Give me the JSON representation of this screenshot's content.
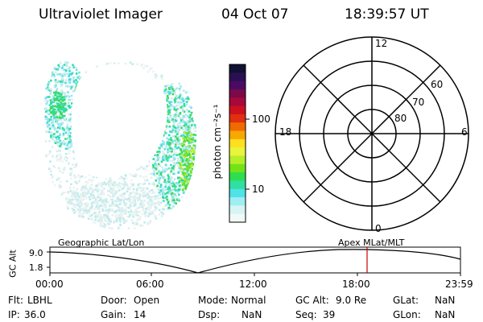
{
  "header": {
    "instrument": "Ultraviolet Imager",
    "date": "04 Oct 07",
    "time": "18:39:57 UT"
  },
  "colorbar": {
    "unit_label": "photon cm⁻²s⁻¹",
    "ticks": [
      "100",
      "10"
    ],
    "colors": [
      "#111133",
      "#2a1050",
      "#4a0b63",
      "#7a0a4a",
      "#a8083a",
      "#cc1020",
      "#e03010",
      "#ef6a00",
      "#f8a800",
      "#ffe020",
      "#e8f53c",
      "#b6ee2a",
      "#73e318",
      "#2ede4e",
      "#2fe0a0",
      "#4fe2e8",
      "#9feef2",
      "#d6f4f4",
      "#f1f8f8"
    ]
  },
  "polar": {
    "mlt_labels": {
      "top": "12",
      "left": "18",
      "right": "6",
      "bottom": "0"
    },
    "lat_labels": [
      "60",
      "70",
      "80"
    ],
    "line_color": "#000000"
  },
  "timeline": {
    "left_label": "Geographic Lat/Lon",
    "right_label": "Apex MLat/MLT",
    "y_axis_label": "GC Alt",
    "y_ticks": [
      "9.0",
      "1.8"
    ],
    "x_ticks": [
      "00:00",
      "06:00",
      "12:00",
      "18:00",
      "23:59"
    ],
    "current_time_marker_color": "#cc0000"
  },
  "info": {
    "filter": {
      "label": "Flt:",
      "value": "LBHL"
    },
    "ip": {
      "label": "IP:",
      "value": "36.0"
    },
    "door": {
      "label": "Door:",
      "value": "Open"
    },
    "gain": {
      "label": "Gain:",
      "value": "14"
    },
    "mode": {
      "label": "Mode:",
      "value": "Normal"
    },
    "dsp": {
      "label": "Dsp:",
      "value": "NaN"
    },
    "gc_alt": {
      "label": "GC Alt:",
      "value": "9.0 Re"
    },
    "seq": {
      "label": "Seq:",
      "value": "39"
    },
    "glat": {
      "label": "GLat:",
      "value": "NaN"
    },
    "glon": {
      "label": "GLon:",
      "value": "NaN"
    }
  }
}
